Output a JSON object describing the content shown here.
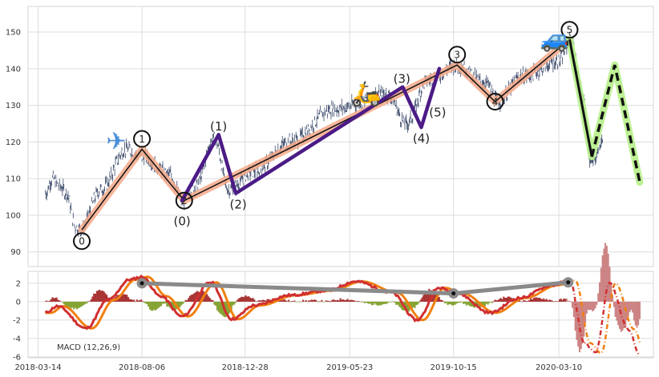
{
  "chart_data": [
    {
      "type": "line",
      "panel": "price",
      "x_dates": [
        "2018-03-14",
        "2018-08-06",
        "2018-12-28",
        "2019-05-23",
        "2019-10-15",
        "2020-03-10"
      ],
      "ylim": [
        86,
        157
      ],
      "yticks": [
        90,
        100,
        110,
        120,
        130,
        140,
        150
      ],
      "grid": true,
      "price_anchors": [
        {
          "d": "2018-03-24",
          "v": 106
        },
        {
          "d": "2018-04-03",
          "v": 110
        },
        {
          "d": "2018-04-13",
          "v": 108
        },
        {
          "d": "2018-04-23",
          "v": 106
        },
        {
          "d": "2018-05-05",
          "v": 97
        },
        {
          "d": "2018-05-12",
          "v": 96
        },
        {
          "d": "2018-06-10",
          "v": 107
        },
        {
          "d": "2018-07-15",
          "v": 118
        },
        {
          "d": "2018-08-06",
          "v": 116
        },
        {
          "d": "2018-09-15",
          "v": 111
        },
        {
          "d": "2018-10-01",
          "v": 104
        },
        {
          "d": "2018-10-20",
          "v": 108
        },
        {
          "d": "2018-11-15",
          "v": 121
        },
        {
          "d": "2018-12-05",
          "v": 107
        },
        {
          "d": "2019-01-10",
          "v": 112
        },
        {
          "d": "2019-03-01",
          "v": 120
        },
        {
          "d": "2019-05-01",
          "v": 129
        },
        {
          "d": "2019-07-15",
          "v": 133
        },
        {
          "d": "2019-08-10",
          "v": 125
        },
        {
          "d": "2019-09-10",
          "v": 137
        },
        {
          "d": "2019-10-20",
          "v": 141
        },
        {
          "d": "2019-11-30",
          "v": 136
        },
        {
          "d": "2019-12-15",
          "v": 131
        },
        {
          "d": "2020-01-20",
          "v": 138
        },
        {
          "d": "2020-03-10",
          "v": 142
        },
        {
          "d": "2020-03-27",
          "v": 148
        },
        {
          "d": "2020-04-12",
          "v": 133
        },
        {
          "d": "2020-04-24",
          "v": 114
        },
        {
          "d": "2020-05-10",
          "v": 120
        }
      ],
      "primary_wave": [
        {
          "d": "2018-05-14",
          "v": 96,
          "label": "0"
        },
        {
          "d": "2018-08-06",
          "v": 118,
          "label": "1"
        },
        {
          "d": "2018-10-04",
          "v": 104,
          "label": "2"
        },
        {
          "d": "2019-10-20",
          "v": 141,
          "label": "3"
        },
        {
          "d": "2019-12-12",
          "v": 131,
          "label": "4"
        },
        {
          "d": "2020-03-25",
          "v": 148,
          "label": "5"
        }
      ],
      "sub_wave": [
        {
          "d": "2018-10-01",
          "v": 104,
          "label": "(0)"
        },
        {
          "d": "2018-11-21",
          "v": 122,
          "label": "(1)"
        },
        {
          "d": "2018-12-15",
          "v": 106,
          "label": "(2)"
        },
        {
          "d": "2019-08-05",
          "v": 135,
          "label": "(3)"
        },
        {
          "d": "2019-08-31",
          "v": 124,
          "label": "(4)"
        },
        {
          "d": "2019-09-25",
          "v": 140,
          "label": "(5)"
        }
      ],
      "correction": [
        {
          "d": "2020-03-25",
          "v": 148
        },
        {
          "d": "2020-04-25",
          "v": 116
        },
        {
          "d": "2020-05-27",
          "v": 141
        },
        {
          "d": "2020-07-01",
          "v": 109
        }
      ],
      "markers": [
        {
          "name": "airplane",
          "glyph": "✈",
          "color": "#4a90d9",
          "d": "2018-07-01",
          "v": 118
        },
        {
          "name": "scooter",
          "glyph": "🛵",
          "color": "#e07b28",
          "d": "2019-06-15",
          "v": 131
        },
        {
          "name": "car",
          "glyph": "🚙",
          "color": "#2a7ad5",
          "d": "2020-03-05",
          "v": 146
        }
      ],
      "colors": {
        "price": "#3b4a6b",
        "primary_band": "#f4a98a",
        "primary_line": "#111111",
        "sub_wave": "#4b1b86",
        "correction_glow": "#b7f08a",
        "correction_line": "#111111"
      }
    },
    {
      "type": "line",
      "panel": "macd",
      "ylim": [
        -6.1,
        3.3
      ],
      "yticks": [
        2,
        0,
        -2,
        -4,
        -6
      ],
      "grid": true,
      "annotation": "MACD (12,26,9)",
      "macd_anchors": [
        {
          "d": "2018-03-24",
          "v": -1.2
        },
        {
          "d": "2018-04-10",
          "v": -0.5
        },
        {
          "d": "2018-05-20",
          "v": -2.9
        },
        {
          "d": "2018-06-20",
          "v": 0.2
        },
        {
          "d": "2018-07-20",
          "v": 2.4
        },
        {
          "d": "2018-08-06",
          "v": 2.7
        },
        {
          "d": "2018-09-01",
          "v": 0.6
        },
        {
          "d": "2018-10-01",
          "v": -1.6
        },
        {
          "d": "2018-11-10",
          "v": 2.1
        },
        {
          "d": "2018-12-10",
          "v": -1.9
        },
        {
          "d": "2019-01-10",
          "v": -0.4
        },
        {
          "d": "2019-03-01",
          "v": 0.7
        },
        {
          "d": "2019-04-20",
          "v": 1.2
        },
        {
          "d": "2019-06-01",
          "v": 2.2
        },
        {
          "d": "2019-07-20",
          "v": 1.0
        },
        {
          "d": "2019-08-25",
          "v": -2.0
        },
        {
          "d": "2019-09-25",
          "v": 1.5
        },
        {
          "d": "2019-10-20",
          "v": 0.9
        },
        {
          "d": "2019-12-05",
          "v": -1.2
        },
        {
          "d": "2020-01-15",
          "v": 0.4
        },
        {
          "d": "2020-03-01",
          "v": 1.8
        },
        {
          "d": "2020-03-25",
          "v": 2.3
        },
        {
          "d": "2020-04-15",
          "v": -4.5
        },
        {
          "d": "2020-04-30",
          "v": -5.6
        },
        {
          "d": "2020-05-20",
          "v": 2.0
        },
        {
          "d": "2020-06-15",
          "v": -3.0
        },
        {
          "d": "2020-07-01",
          "v": -5.8
        }
      ],
      "gray_line": [
        {
          "d": "2018-08-06",
          "v": 2.0
        },
        {
          "d": "2019-10-15",
          "v": 0.9
        },
        {
          "d": "2020-03-23",
          "v": 2.1
        }
      ],
      "colors": {
        "signal": "#f08010",
        "macd": "#d03030",
        "gray_line": "#8a8a8a",
        "hist_pos": "#a02020",
        "hist_neg": "#7a9a20",
        "hist_late": "#c87878"
      }
    }
  ]
}
